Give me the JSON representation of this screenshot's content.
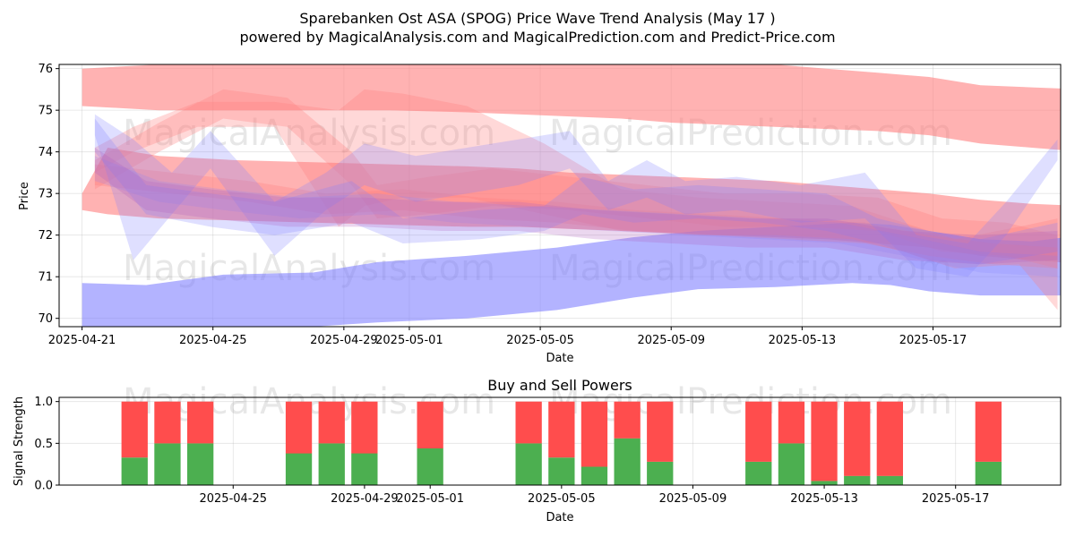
{
  "figure": {
    "title_line1": "Sparebanken Ost ASA (SPOG) Price Wave Trend Analysis (May 17 )",
    "title_line2": "powered by MagicalAnalysis.com and MagicalPrediction.com and Predict-Price.com",
    "watermarks": [
      "MagicalAnalysis.com",
      "MagicalPrediction.com"
    ]
  },
  "colors": {
    "red_band": "#ff7f7f",
    "blue_band": "#8080ff",
    "buy": "#4caf50",
    "sell": "#ff4d4d"
  },
  "chart_data": [
    {
      "type": "area",
      "title": "",
      "xlabel": "Date",
      "ylabel": "Price",
      "ylim": [
        69.8,
        76.1
      ],
      "xlim": [
        "2025-04-20.3",
        "2025-05-20.9"
      ],
      "y_ticks": [
        "70",
        "71",
        "72",
        "73",
        "74",
        "75",
        "76"
      ],
      "x_ticks": [
        "2025-04-21",
        "2025-04-25",
        "2025-04-29",
        "2025-05-01",
        "2025-05-05",
        "2025-05-09",
        "2025-05-13",
        "2025-05-17"
      ],
      "grid": true,
      "series": [
        {
          "name": "red-upper",
          "color": "red",
          "opacity": 0.6,
          "x": [
            0,
            6,
            12,
            18,
            24,
            30,
            34,
            38,
            42,
            46,
            50,
            54,
            58,
            62,
            66,
            70,
            74,
            78
          ],
          "upper": [
            76.0,
            76.1,
            76.1,
            76.1,
            76.1,
            76.1,
            76.1,
            76.1,
            76.1,
            76.1,
            76.1,
            76.1,
            76.0,
            75.9,
            75.8,
            75.6,
            75.55,
            75.5
          ],
          "lower": [
            75.1,
            75.0,
            75.0,
            75.0,
            75.0,
            74.95,
            74.9,
            74.85,
            74.8,
            74.7,
            74.65,
            74.6,
            74.55,
            74.5,
            74.4,
            74.2,
            74.1,
            74.0
          ]
        },
        {
          "name": "red-lower",
          "color": "red",
          "opacity": 0.6,
          "x": [
            0,
            2,
            6,
            12,
            18,
            24,
            30,
            34,
            38,
            42,
            46,
            50,
            54,
            58,
            62,
            66,
            70,
            74,
            78
          ],
          "upper": [
            73.0,
            74.1,
            73.9,
            73.8,
            73.75,
            73.7,
            73.65,
            73.6,
            73.5,
            73.45,
            73.4,
            73.35,
            73.3,
            73.2,
            73.1,
            73.0,
            72.85,
            72.75,
            72.7
          ],
          "lower": [
            72.6,
            72.5,
            72.4,
            72.35,
            72.3,
            72.25,
            72.2,
            72.2,
            72.15,
            72.1,
            72.05,
            72.0,
            71.95,
            71.9,
            71.8,
            71.7,
            71.5,
            71.4,
            71.3
          ]
        },
        {
          "name": "blue-lower",
          "color": "blue",
          "opacity": 0.6,
          "x": [
            0,
            5,
            11,
            18,
            23,
            30,
            37,
            43,
            48,
            54,
            60,
            63,
            66,
            70,
            74,
            78
          ],
          "upper": [
            70.85,
            70.8,
            71.05,
            71.1,
            71.35,
            71.5,
            71.7,
            71.95,
            72.1,
            72.2,
            72.3,
            72.25,
            72.1,
            71.9,
            71.85,
            72.0
          ],
          "lower": [
            69.8,
            69.8,
            69.8,
            69.8,
            69.9,
            70.0,
            70.2,
            70.5,
            70.7,
            70.75,
            70.85,
            70.8,
            70.65,
            70.55,
            70.55,
            70.55
          ]
        },
        {
          "name": "red-wave-1",
          "color": "red",
          "opacity": 0.3,
          "x": [
            1,
            6,
            11,
            16,
            21,
            23,
            27,
            32,
            38,
            44,
            50,
            56,
            62,
            67,
            72,
            76
          ],
          "upper": [
            73.8,
            74.7,
            75.5,
            75.3,
            74.0,
            73.2,
            73.4,
            73.6,
            73.4,
            73.2,
            73.0,
            73.0,
            72.9,
            72.4,
            72.3,
            72.0
          ],
          "lower": [
            73.1,
            74.0,
            74.8,
            74.6,
            73.2,
            72.4,
            72.5,
            72.7,
            72.6,
            72.4,
            72.2,
            72.2,
            72.1,
            71.6,
            71.5,
            71.2
          ]
        },
        {
          "name": "red-wave-2",
          "color": "red",
          "opacity": 0.3,
          "x": [
            1,
            4,
            9,
            15,
            20,
            22,
            25,
            30,
            36,
            42,
            48,
            54,
            60,
            64,
            68,
            73,
            76
          ],
          "upper": [
            74.1,
            74.6,
            75.2,
            75.2,
            75.0,
            75.5,
            75.4,
            75.1,
            74.2,
            73.1,
            72.9,
            72.8,
            72.7,
            72.3,
            71.9,
            72.2,
            72.4
          ],
          "lower": [
            73.5,
            74.0,
            74.6,
            74.6,
            72.2,
            72.7,
            72.9,
            72.9,
            72.5,
            72.1,
            72.0,
            72.0,
            71.9,
            71.6,
            71.2,
            71.3,
            70.2
          ]
        },
        {
          "name": "red-wave-3",
          "color": "red",
          "opacity": 0.3,
          "x": [
            1,
            7,
            13,
            19,
            25,
            31,
            37,
            43,
            49,
            55,
            61,
            66,
            71,
            76
          ],
          "upper": [
            73.7,
            73.5,
            73.3,
            73.0,
            73.1,
            72.9,
            72.8,
            72.6,
            72.5,
            72.4,
            72.3,
            72.0,
            71.8,
            71.7
          ],
          "lower": [
            73.2,
            73.0,
            72.8,
            72.5,
            72.6,
            72.4,
            72.3,
            72.1,
            72.0,
            71.9,
            71.8,
            71.5,
            71.3,
            71.2
          ]
        },
        {
          "name": "blue-wave-1",
          "color": "blue",
          "opacity": 0.25,
          "x": [
            1,
            4,
            7,
            10,
            15,
            19,
            22,
            26,
            30,
            34,
            38,
            41,
            44,
            47,
            51,
            56,
            61,
            65,
            69,
            72,
            76
          ],
          "upper": [
            74.9,
            74.3,
            73.5,
            74.5,
            72.8,
            73.5,
            74.2,
            73.9,
            74.1,
            74.3,
            74.5,
            73.3,
            73.8,
            73.3,
            73.4,
            73.2,
            73.5,
            72.0,
            71.8,
            72.8,
            74.3
          ],
          "lower": [
            74.4,
            71.4,
            72.5,
            73.6,
            71.5,
            72.6,
            73.2,
            72.8,
            73.0,
            73.2,
            73.6,
            72.6,
            72.9,
            72.5,
            72.6,
            72.3,
            72.4,
            71.2,
            71.0,
            72.0,
            73.8
          ]
        },
        {
          "name": "blue-wave-2",
          "color": "blue",
          "opacity": 0.25,
          "x": [
            1,
            5,
            10,
            15,
            21,
            25,
            31,
            36,
            39,
            43,
            48,
            53,
            58,
            62,
            66,
            70,
            76
          ],
          "upper": [
            74.8,
            73.2,
            73.0,
            72.8,
            73.3,
            72.4,
            72.6,
            72.7,
            73.4,
            73.1,
            73.2,
            73.1,
            73.0,
            72.4,
            72.1,
            71.9,
            72.3
          ],
          "lower": [
            74.0,
            72.5,
            72.2,
            72.0,
            72.3,
            71.8,
            71.9,
            72.1,
            72.5,
            72.3,
            72.4,
            72.3,
            72.1,
            71.8,
            71.4,
            71.3,
            71.6
          ]
        },
        {
          "name": "blue-wave-3",
          "color": "blue",
          "opacity": 0.2,
          "x": [
            1,
            6,
            11,
            17,
            23,
            29,
            35,
            41,
            47,
            53,
            59,
            64,
            70,
            76
          ],
          "upper": [
            73.9,
            73.3,
            73.1,
            72.9,
            73.0,
            72.8,
            72.7,
            72.6,
            72.5,
            72.4,
            72.3,
            72.0,
            71.6,
            71.5
          ],
          "lower": [
            73.3,
            72.8,
            72.6,
            72.4,
            72.5,
            72.3,
            72.2,
            72.1,
            72.0,
            71.9,
            71.8,
            71.5,
            71.1,
            71.0
          ]
        },
        {
          "name": "purple-wave",
          "color": "purple",
          "opacity": 0.25,
          "x": [
            1,
            5,
            10,
            16,
            22,
            28,
            34,
            40,
            46,
            52,
            58,
            64,
            70,
            76
          ],
          "upper": [
            74.1,
            73.3,
            73.1,
            72.9,
            72.9,
            72.8,
            72.8,
            72.6,
            72.5,
            72.4,
            72.4,
            72.1,
            72.0,
            72.1
          ],
          "lower": [
            73.5,
            72.6,
            72.4,
            72.2,
            72.2,
            72.1,
            72.1,
            71.9,
            71.8,
            71.7,
            71.7,
            71.4,
            71.3,
            71.4
          ]
        }
      ]
    },
    {
      "type": "bar",
      "title": "Buy and Sell Powers",
      "xlabel": "Date",
      "ylabel": "Signal Strength",
      "ylim": [
        0.0,
        1.05
      ],
      "y_ticks": [
        "0.0",
        "0.5",
        "1.0"
      ],
      "x_ticks": [
        "2025-04-25",
        "2025-04-29",
        "2025-05-01",
        "2025-05-05",
        "2025-05-09",
        "2025-05-13",
        "2025-05-17"
      ],
      "grid": true,
      "bars": [
        {
          "date": "2025-04-22",
          "buy": 0.33,
          "sell": 0.67
        },
        {
          "date": "2025-04-23",
          "buy": 0.5,
          "sell": 0.5
        },
        {
          "date": "2025-04-24",
          "buy": 0.5,
          "sell": 0.5
        },
        {
          "date": "2025-04-27",
          "buy": 0.38,
          "sell": 0.62
        },
        {
          "date": "2025-04-28",
          "buy": 0.5,
          "sell": 0.5
        },
        {
          "date": "2025-04-29",
          "buy": 0.38,
          "sell": 0.62
        },
        {
          "date": "2025-05-01",
          "buy": 0.44,
          "sell": 0.56
        },
        {
          "date": "2025-05-04",
          "buy": 0.5,
          "sell": 0.5
        },
        {
          "date": "2025-05-05",
          "buy": 0.33,
          "sell": 0.67
        },
        {
          "date": "2025-05-06",
          "buy": 0.22,
          "sell": 0.78
        },
        {
          "date": "2025-05-07",
          "buy": 0.56,
          "sell": 0.44
        },
        {
          "date": "2025-05-08",
          "buy": 0.28,
          "sell": 0.72
        },
        {
          "date": "2025-05-11",
          "buy": 0.28,
          "sell": 0.72
        },
        {
          "date": "2025-05-12",
          "buy": 0.5,
          "sell": 0.5
        },
        {
          "date": "2025-05-13",
          "buy": 0.05,
          "sell": 0.95
        },
        {
          "date": "2025-05-14",
          "buy": 0.11,
          "sell": 0.89
        },
        {
          "date": "2025-05-15",
          "buy": 0.11,
          "sell": 0.89
        },
        {
          "date": "2025-05-18",
          "buy": 0.28,
          "sell": 0.72
        }
      ]
    }
  ]
}
